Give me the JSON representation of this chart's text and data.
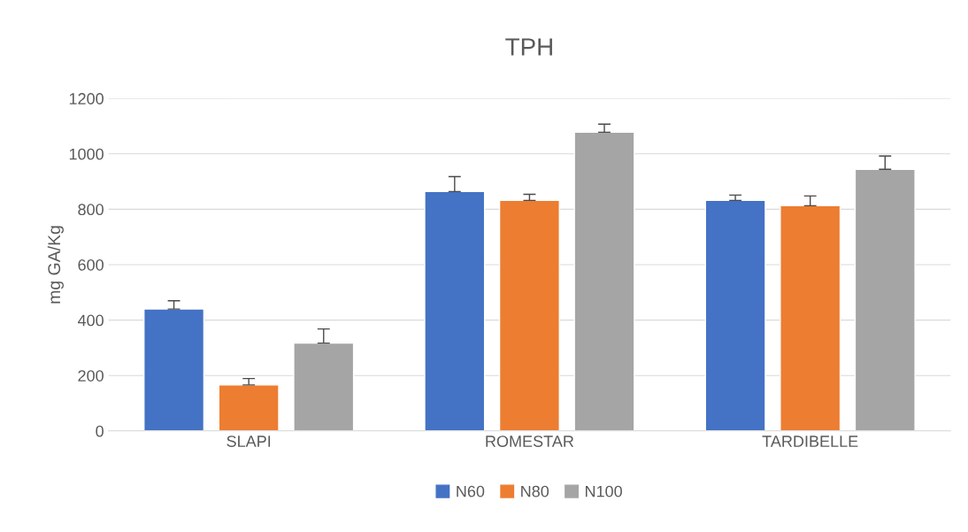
{
  "chart_data": {
    "type": "bar",
    "title": "TPH",
    "ylabel": "mg GA/Kg",
    "categories": [
      "SLAPI",
      "ROMESTAR",
      "TARDIBELLE"
    ],
    "series": [
      {
        "name": "N60",
        "color": "#4472c4",
        "values": [
          440,
          864,
          832
        ],
        "errors": [
          [
            440,
            470
          ],
          [
            864,
            918
          ],
          [
            832,
            851
          ]
        ]
      },
      {
        "name": "N80",
        "color": "#ed7d31",
        "values": [
          166,
          832,
          813
        ],
        "errors": [
          [
            166,
            189
          ],
          [
            832,
            854
          ],
          [
            813,
            848
          ]
        ]
      },
      {
        "name": "N100",
        "color": "#a5a5a5",
        "values": [
          317,
          1078,
          944
        ],
        "errors": [
          [
            317,
            368
          ],
          [
            1078,
            1107
          ],
          [
            944,
            992
          ]
        ]
      }
    ],
    "ylim": [
      0,
      1200
    ],
    "yticks": [
      0,
      200,
      400,
      600,
      800,
      1000,
      1200
    ],
    "grid": "y",
    "legend": "bottom"
  }
}
